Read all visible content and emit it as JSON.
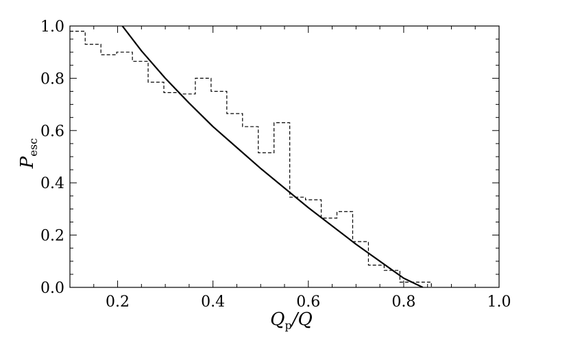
{
  "chart_data": {
    "type": "line",
    "title": "",
    "xlabel": {
      "main": "Q",
      "sub": "p",
      "suffix": "/Q"
    },
    "ylabel": {
      "main": "P",
      "sub": "esc"
    },
    "xlim": [
      0.1,
      1.0
    ],
    "ylim": [
      0.0,
      1.0
    ],
    "x_major_ticks": [
      0.2,
      0.4,
      0.6,
      0.8,
      1.0
    ],
    "x_tick_labels": [
      "0.2",
      "0.4",
      "0.6",
      "0.8",
      "1.0"
    ],
    "y_major_ticks": [
      0.0,
      0.2,
      0.4,
      0.6,
      0.8,
      1.0
    ],
    "y_tick_labels": [
      "0.0",
      "0.2",
      "0.4",
      "0.6",
      "0.8",
      "1.0"
    ],
    "grid": false,
    "legend": "none",
    "series": [
      {
        "style": "solid",
        "color": "#000000",
        "x": [
          0.21,
          0.25,
          0.3,
          0.35,
          0.4,
          0.45,
          0.5,
          0.55,
          0.6,
          0.65,
          0.7,
          0.75,
          0.8,
          0.84
        ],
        "y": [
          1.0,
          0.905,
          0.8,
          0.705,
          0.615,
          0.535,
          0.455,
          0.38,
          0.305,
          0.235,
          0.165,
          0.1,
          0.035,
          0.0
        ]
      },
      {
        "style": "dashed-step",
        "color": "#000000",
        "bin_edges": [
          0.1,
          0.132,
          0.165,
          0.198,
          0.231,
          0.264,
          0.297,
          0.33,
          0.363,
          0.396,
          0.429,
          0.462,
          0.495,
          0.528,
          0.561,
          0.594,
          0.627,
          0.66,
          0.693,
          0.726,
          0.759,
          0.792,
          0.825,
          0.858
        ],
        "values": [
          0.98,
          0.93,
          0.89,
          0.9,
          0.865,
          0.785,
          0.745,
          0.74,
          0.8,
          0.75,
          0.665,
          0.615,
          0.515,
          0.63,
          0.345,
          0.335,
          0.265,
          0.29,
          0.175,
          0.085,
          0.065,
          0.02,
          0.02
        ]
      }
    ]
  }
}
